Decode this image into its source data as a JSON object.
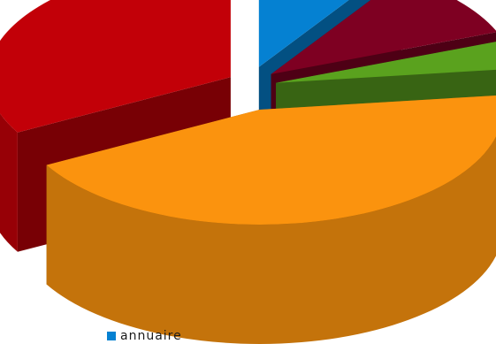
{
  "chart_data": {
    "type": "pie",
    "style": "3d-exploded",
    "title": "",
    "categories": [
      "annuaire",
      "",
      "",
      "",
      ""
    ],
    "values": [
      9,
      10,
      4,
      44,
      33
    ],
    "colors": [
      "#0581d2",
      "#7e0022",
      "#5aa21e",
      "#fb930e",
      "#c20008"
    ],
    "legend": {
      "placement": "bottom-left",
      "entries": [
        "annuaire"
      ]
    }
  }
}
